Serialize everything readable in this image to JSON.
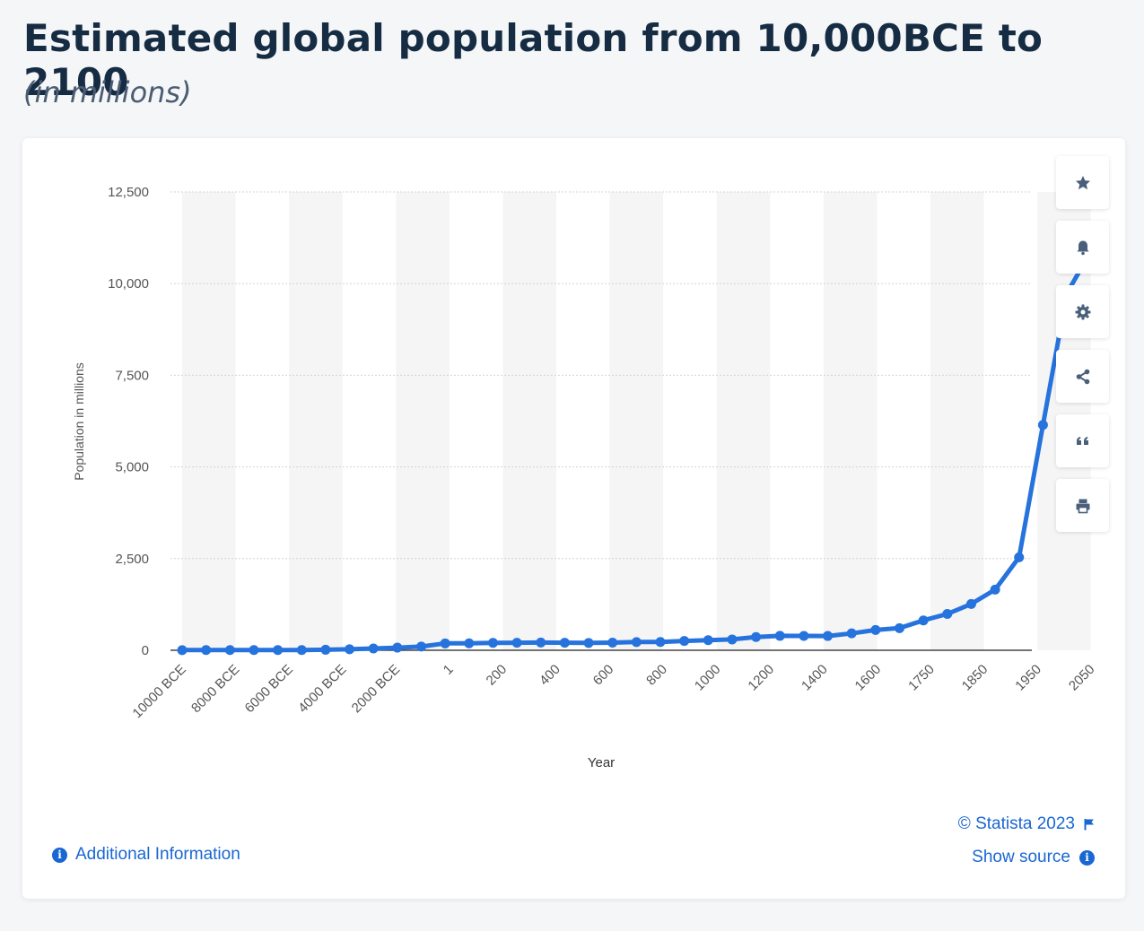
{
  "header": {
    "title": "Estimated global population from 10,000BCE to 2100",
    "subtitle": "(in millions)"
  },
  "toolbar": {
    "buttons": [
      {
        "name": "favorite-button",
        "icon": "star-icon"
      },
      {
        "name": "notification-button",
        "icon": "bell-icon"
      },
      {
        "name": "settings-button",
        "icon": "gear-icon"
      },
      {
        "name": "share-button",
        "icon": "share-icon"
      },
      {
        "name": "cite-button",
        "icon": "quote-icon"
      },
      {
        "name": "print-button",
        "icon": "printer-icon"
      }
    ]
  },
  "footer": {
    "additional_info": "Additional Information",
    "copyright": "© Statista 2023",
    "show_source": "Show source"
  },
  "colors": {
    "line": "#2673dd",
    "link": "#1967d2",
    "band": "#f5f5f6",
    "grid": "#cfd3d8"
  },
  "chart_data": {
    "type": "line",
    "title": "",
    "xlabel": "Year",
    "ylabel": "Population in millions",
    "ylim": [
      0,
      12500
    ],
    "yticks": [
      0,
      2500,
      5000,
      7500,
      10000,
      12500
    ],
    "ytick_labels": [
      "0",
      "2,500",
      "5,000",
      "7,500",
      "10,000",
      "12,500"
    ],
    "grid": true,
    "x_labels": [
      "10000 BCE",
      "8000 BCE",
      "6000 BCE",
      "4000 BCE",
      "2000 BCE",
      "1",
      "200",
      "400",
      "600",
      "800",
      "1000",
      "1200",
      "1400",
      "1600",
      "1750",
      "1850",
      "1950",
      "2050"
    ],
    "series": [
      {
        "values": [
          4,
          5,
          5,
          7,
          5,
          7,
          14,
          27,
          50,
          72,
          100,
          188,
          190,
          202,
          205,
          210,
          206,
          200,
          207,
          224,
          226,
          254,
          276,
          295,
          360,
          393,
          392,
          390,
          461,
          554,
          603,
          814,
          990,
          1263,
          1654,
          2536,
          6145,
          9735,
          10875
        ]
      }
    ]
  }
}
